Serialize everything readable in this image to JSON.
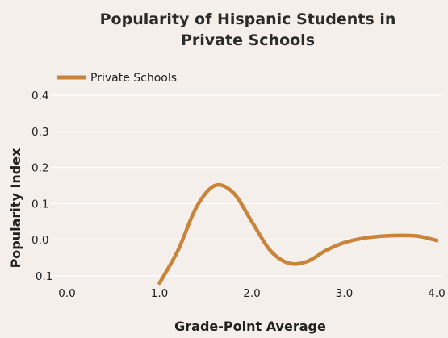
{
  "chart_data": {
    "type": "line",
    "title": "Popularity of Hispanic Students in Private Schools",
    "title_lines": [
      "Popularity of Hispanic Students in",
      "Private Schools"
    ],
    "xlabel": "Grade-Point Average",
    "ylabel": "Popularity Index",
    "xlim": [
      0.0,
      4.0
    ],
    "ylim": [
      -0.1,
      0.4
    ],
    "x_ticks": [
      0.0,
      1.0,
      2.0,
      3.0,
      4.0
    ],
    "x_tick_labels": [
      "0.0",
      "1.0",
      "2.0",
      "3.0",
      "4.0"
    ],
    "y_ticks": [
      -0.1,
      0.0,
      0.1,
      0.2,
      0.3,
      0.4
    ],
    "y_tick_labels": [
      "-0.1",
      "0.0",
      "0.1",
      "0.2",
      "0.3",
      "0.4"
    ],
    "grid": "horizontal",
    "legend_position": "top-left",
    "series": [
      {
        "name": "Private Schools",
        "color": "#c8843a",
        "x": [
          1.0,
          1.2,
          1.4,
          1.6,
          1.8,
          2.0,
          2.2,
          2.4,
          2.6,
          2.8,
          3.0,
          3.2,
          3.4,
          3.6,
          3.8,
          4.0
        ],
        "y": [
          -0.12,
          -0.03,
          0.09,
          0.15,
          0.13,
          0.05,
          -0.03,
          -0.065,
          -0.06,
          -0.03,
          -0.008,
          0.004,
          0.01,
          0.012,
          0.01,
          -0.002
        ]
      }
    ]
  }
}
